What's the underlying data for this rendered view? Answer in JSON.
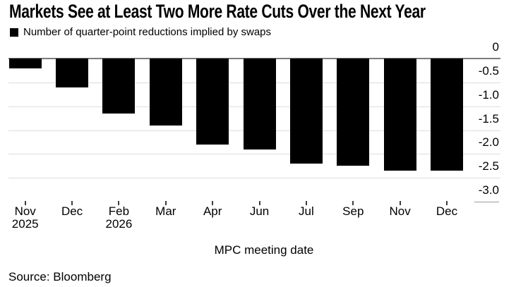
{
  "chart_data": {
    "type": "bar",
    "title": "Markets See at Least Two More Rate Cuts Over the Next Year",
    "series_label": "Number of quarter-point reductions implied by swaps",
    "categories": [
      "Nov 2025",
      "Dec",
      "Feb 2026",
      "Mar",
      "Apr",
      "Jun",
      "Jul",
      "Sep",
      "Nov",
      "Dec"
    ],
    "category_lines": [
      [
        "Nov",
        "2025"
      ],
      [
        "Dec"
      ],
      [
        "Feb",
        "2026"
      ],
      [
        "Mar"
      ],
      [
        "Apr"
      ],
      [
        "Jun"
      ],
      [
        "Jul"
      ],
      [
        "Sep"
      ],
      [
        "Nov"
      ],
      [
        "Dec"
      ]
    ],
    "values": [
      -0.2,
      -0.6,
      -1.15,
      -1.4,
      -1.8,
      -1.9,
      -2.2,
      -2.25,
      -2.35,
      -2.35
    ],
    "xlabel": "MPC meeting date",
    "ylabel": "",
    "ylim": [
      -3.0,
      0
    ],
    "yticks": [
      0,
      -0.5,
      -1.0,
      -1.5,
      -2.0,
      -2.5,
      -3.0
    ],
    "ytick_labels": [
      "0",
      "-0.5",
      "-1.0",
      "-1.5",
      "-2.0",
      "-2.5",
      "-3.0"
    ],
    "bar_color": "#000000",
    "grid": true,
    "gridline_color": "#dcdcdc",
    "zero_line_color": "#7c7c7c",
    "legend_position": "top-left",
    "source": "Source: Bloomberg"
  }
}
